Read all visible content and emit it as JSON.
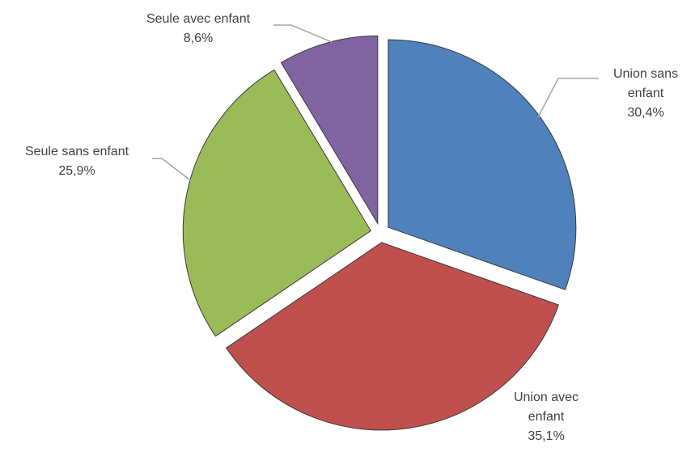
{
  "chart_data": {
    "type": "pie",
    "categories": [
      "Union sans enfant",
      "Union avec enfant",
      "Seule sans enfant",
      "Seule avec enfant"
    ],
    "values": [
      30.4,
      35.1,
      25.9,
      8.6
    ],
    "value_labels": [
      "30,4%",
      "35,1%",
      "25,9%",
      "8,6%"
    ],
    "colors": [
      "#4f81bd",
      "#c0504d",
      "#9bbb59",
      "#8064a2"
    ]
  }
}
